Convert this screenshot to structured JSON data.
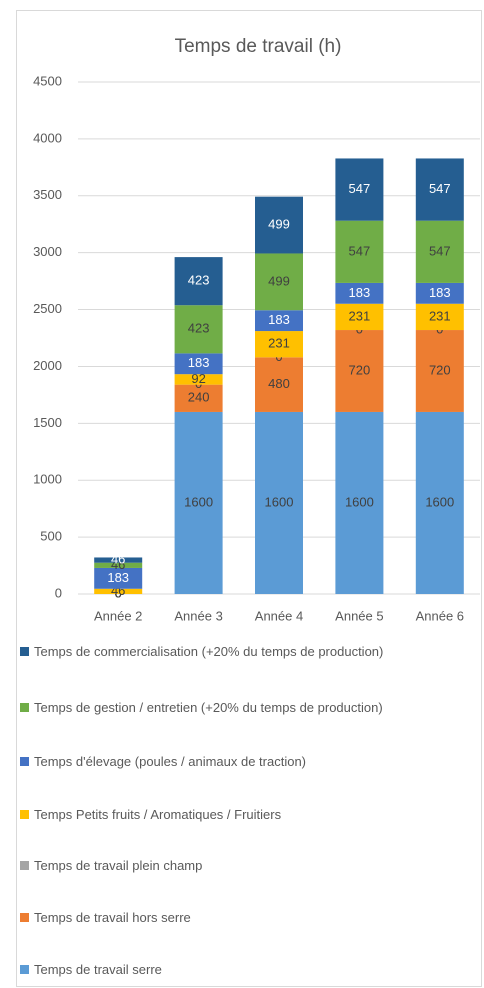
{
  "chart_data": {
    "type": "stacked_bar",
    "title": "Temps de travail (h)",
    "categories": [
      "Année 2",
      "Année 3",
      "Année 4",
      "Année 5",
      "Année 6"
    ],
    "series": [
      {
        "name": "Temps de travail serre",
        "color": "#5b9bd5",
        "values": [
          0,
          1600,
          1600,
          1600,
          1600
        ]
      },
      {
        "name": "Temps de travail hors serre",
        "color": "#ed7d31",
        "values": [
          0,
          240,
          480,
          720,
          720
        ]
      },
      {
        "name": "Temps de travail plein champ",
        "color": "#a5a5a5",
        "values": [
          0,
          0,
          0,
          0,
          0
        ]
      },
      {
        "name": "Temps Petits fruits / Aromatiques / Fruitiers",
        "color": "#ffc000",
        "values": [
          46,
          92,
          231,
          231,
          231
        ]
      },
      {
        "name": "Temps d'élevage (poules / animaux de traction)",
        "color": "#4472c4",
        "values": [
          183,
          183,
          183,
          183,
          183
        ]
      },
      {
        "name": "Temps de gestion / entretien (+20% du temps de production)",
        "color": "#70ad47",
        "values": [
          46,
          423,
          499,
          547,
          547
        ]
      },
      {
        "name": "Temps de commercialisation (+20% du temps de production)",
        "color": "#255e91",
        "values": [
          46,
          423,
          499,
          547,
          547
        ]
      }
    ],
    "ylim": [
      0,
      4500
    ],
    "yticks": [
      0,
      500,
      1000,
      1500,
      2000,
      2500,
      3000,
      3500,
      4000,
      4500
    ],
    "grid": true,
    "legend": "bottom"
  }
}
